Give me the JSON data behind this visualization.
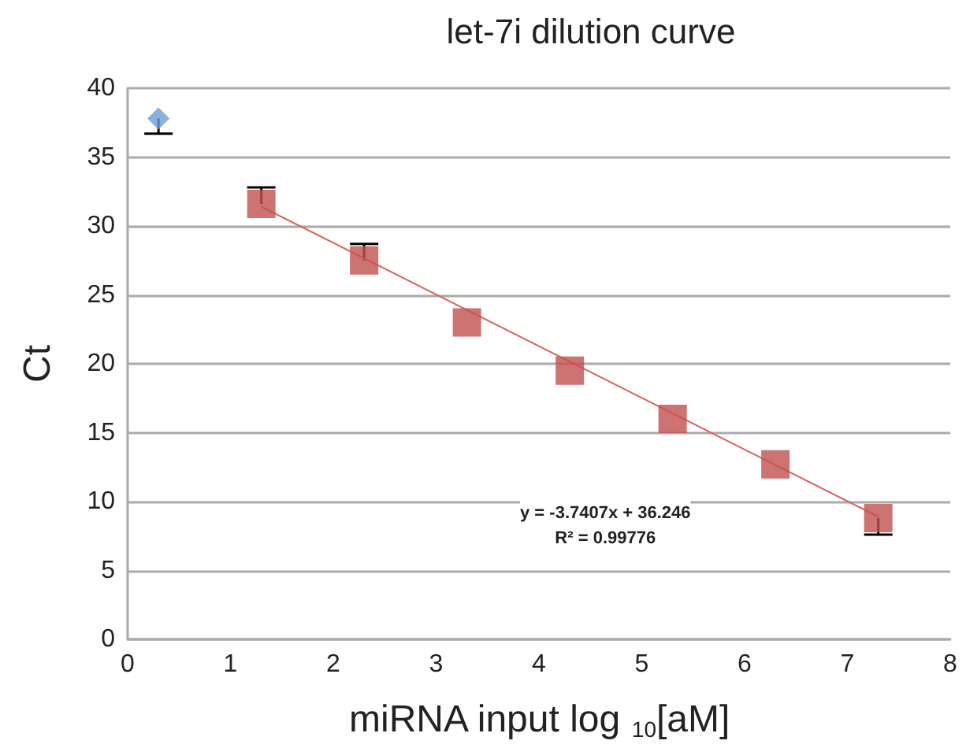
{
  "chart_data": {
    "type": "scatter",
    "title": "let-7i dilution curve",
    "xlabel": "miRNA input log $_{10}$[aM]",
    "ylabel": "Ct",
    "annotations": [
      "y = -3.7407x + 36.246\nR² = 0.99776"
    ],
    "series": [
      {
        "type": "line",
        "color": "#d9645f",
        "marker": "none",
        "x": [
          1.3,
          7.3
        ],
        "values": [
          31.4,
          8.9
        ]
      },
      {
        "color": "#6a9bd6",
        "marker": "diamond",
        "x": [
          0.3
        ],
        "values": [
          37.8
        ],
        "errors": [
          [
            36.7,
            37.8
          ]
        ]
      },
      {
        "color": "#c0504d",
        "marker": "square",
        "x": [
          1.3,
          2.3,
          3.3,
          4.3,
          5.3,
          6.3,
          7.3
        ],
        "values": [
          31.6,
          27.5,
          23.0,
          19.5,
          16.0,
          12.7,
          8.8
        ],
        "errors": [
          [
            31.6,
            32.8
          ],
          [
            27.5,
            28.7
          ],
          null,
          null,
          null,
          null,
          [
            7.6,
            8.8
          ]
        ]
      }
    ],
    "xlim": [
      0,
      8
    ],
    "xticks": [
      0,
      1,
      2,
      3,
      4,
      5,
      6,
      7,
      8
    ],
    "ylim": [
      0,
      40
    ],
    "yticks": [
      0,
      5,
      10,
      15,
      20,
      25,
      30,
      35,
      40
    ],
    "grid": "y"
  }
}
